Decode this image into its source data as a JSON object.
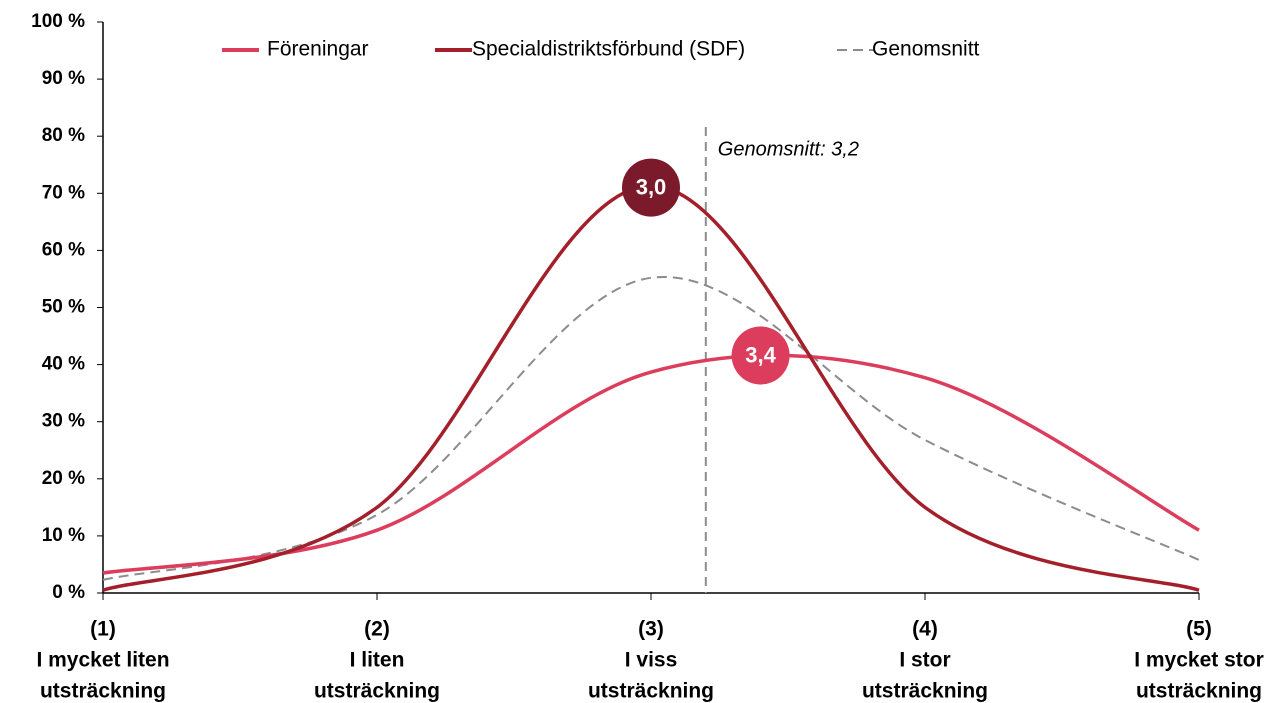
{
  "chart_data": {
    "type": "line",
    "x": [
      1,
      2,
      3,
      4,
      5
    ],
    "xlim": [
      1,
      5
    ],
    "xticks": [
      {
        "value": 1,
        "label": [
          "(1)",
          "I mycket liten",
          "utsträckning"
        ]
      },
      {
        "value": 2,
        "label": [
          "(2)",
          "I liten",
          "utsträckning"
        ]
      },
      {
        "value": 3,
        "label": [
          "(3)",
          "I viss",
          "utsträckning"
        ]
      },
      {
        "value": 4,
        "label": [
          "(4)",
          "I stor",
          "utsträckning"
        ]
      },
      {
        "value": 5,
        "label": [
          "(5)",
          "I mycket stor",
          "utsträckning"
        ]
      }
    ],
    "ylim": [
      0,
      100
    ],
    "yticks": [
      {
        "value": 0,
        "label": "0 %"
      },
      {
        "value": 10,
        "label": "10 %"
      },
      {
        "value": 20,
        "label": "20 %"
      },
      {
        "value": 30,
        "label": "30 %"
      },
      {
        "value": 40,
        "label": "40 %"
      },
      {
        "value": 50,
        "label": "50 %"
      },
      {
        "value": 60,
        "label": "60 %"
      },
      {
        "value": 70,
        "label": "70 %"
      },
      {
        "value": 80,
        "label": "80 %"
      },
      {
        "value": 90,
        "label": "90 %"
      },
      {
        "value": 100,
        "label": "100 %"
      }
    ],
    "series": [
      {
        "name": "Föreningar",
        "color": "#dc3d5c",
        "values": [
          3.5,
          11,
          38.7,
          37.7,
          11
        ]
      },
      {
        "name": "Specialdistriktsförbund (SDF)",
        "color": "#a3202b",
        "values": [
          0.5,
          15,
          71.3,
          15,
          0.5
        ]
      },
      {
        "name": "Genomsnitt",
        "color": "#8c8c8c",
        "dashed": true,
        "values": [
          2.3,
          13.7,
          55.2,
          26.8,
          5.8
        ]
      }
    ],
    "reference_line": {
      "x": 3.2,
      "label": "Genomsnitt: 3,2",
      "color": "#8c8c8c"
    },
    "markers": [
      {
        "x": 3.0,
        "y": 71,
        "label": "3,0",
        "color": "#7b1a2a"
      },
      {
        "x": 3.4,
        "y": 41.6,
        "label": "3,4",
        "color": "#dc3d5c"
      }
    ],
    "legend": "top"
  }
}
